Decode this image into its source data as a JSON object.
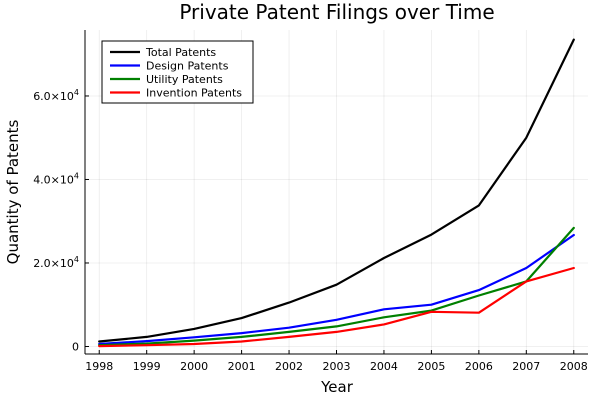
{
  "chart_data": {
    "type": "line",
    "title": "Private Patent Filings over Time",
    "xlabel": "Year",
    "ylabel": "Quantity of Patents",
    "x": [
      1998,
      1999,
      2000,
      2001,
      2002,
      2003,
      2004,
      2005,
      2006,
      2007,
      2008
    ],
    "x_tick_labels": [
      "1998",
      "1999",
      "2000",
      "2001",
      "2002",
      "2003",
      "2004",
      "2005",
      "2006",
      "2007",
      "2008"
    ],
    "xlim": [
      1997.7,
      2008.3
    ],
    "ylim": [
      -1800,
      75800
    ],
    "y_ticks": [
      {
        "value": 0,
        "mantissa": "0",
        "exponent": ""
      },
      {
        "value": 20000,
        "mantissa": "2.0×10",
        "exponent": "4"
      },
      {
        "value": 40000,
        "mantissa": "4.0×10",
        "exponent": "4"
      },
      {
        "value": 60000,
        "mantissa": "6.0×10",
        "exponent": "4"
      }
    ],
    "grid": true,
    "legend_position": "top-left",
    "series": [
      {
        "name": "Total Patents",
        "color": "#000000",
        "values": [
          1200,
          2300,
          4200,
          6800,
          10500,
          14800,
          21200,
          26800,
          33800,
          50000,
          73500
        ]
      },
      {
        "name": "Design Patents",
        "color": "#0000ff",
        "values": [
          600,
          1300,
          2200,
          3200,
          4500,
          6400,
          8900,
          10000,
          13500,
          18800,
          26700
        ]
      },
      {
        "name": "Utility Patents",
        "color": "#008000",
        "values": [
          300,
          700,
          1400,
          2300,
          3500,
          4800,
          7000,
          8600,
          12200,
          15600,
          28400
        ]
      },
      {
        "name": "Invention Patents",
        "color": "#ff0000",
        "values": [
          100,
          300,
          600,
          1200,
          2300,
          3500,
          5300,
          8300,
          8100,
          15600,
          18800
        ]
      }
    ]
  }
}
